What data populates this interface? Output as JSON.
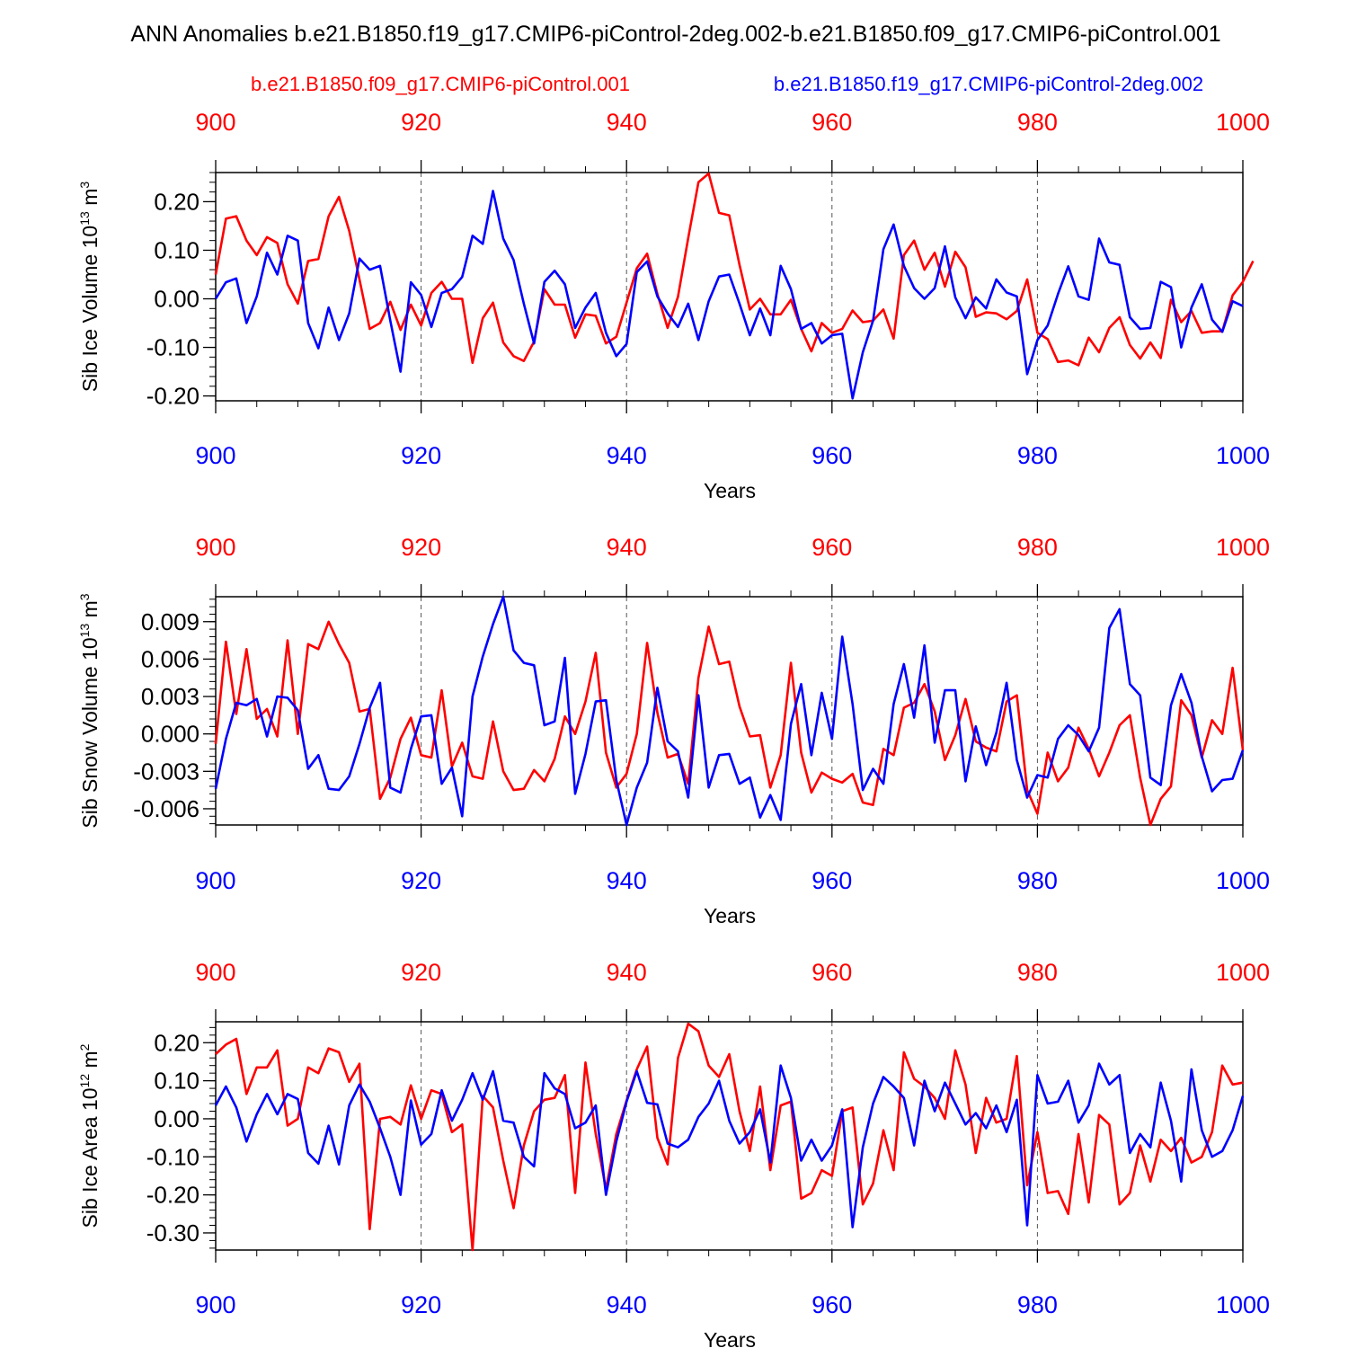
{
  "title": "ANN Anomalies b.e21.B1850.f19_g17.CMIP6-piControl-2deg.002-b.e21.B1850.f09_g17.CMIP6-piControl.001",
  "legend": {
    "red": "b.e21.B1850.f09_g17.CMIP6-piControl.001",
    "blue": "b.e21.B1850.f19_g17.CMIP6-piControl-2deg.002"
  },
  "colors": {
    "red": "#ff0000",
    "blue": "#0000ff",
    "axis": "#000000",
    "grid": "#555555"
  },
  "chart_data": [
    {
      "type": "line",
      "ylabel": "Sib Ice Volume",
      "units_base": "10",
      "units_exp": "13",
      "units_unit": "m",
      "units_unit_exp": "3",
      "xlabel": "Years",
      "xlim": [
        900,
        1000
      ],
      "ylim": [
        -0.21,
        0.26
      ],
      "xticks": [
        "900",
        "920",
        "940",
        "960",
        "980",
        "1000"
      ],
      "ytick_values": [
        0.2,
        0.1,
        0.0,
        -0.1,
        -0.2
      ],
      "ytick_labels": [
        "0.20",
        "0.10",
        "0.00",
        "-0.10",
        "-0.20"
      ],
      "series": [
        {
          "name": "b.e21.B1850.f09_g17.CMIP6-piControl.001",
          "color": "red",
          "values": [
            0.05,
            0.165,
            0.17,
            0.12,
            0.09,
            0.127,
            0.115,
            0.03,
            -0.01,
            0.078,
            0.082,
            0.17,
            0.21,
            0.14,
            0.04,
            -0.062,
            -0.05,
            -0.006,
            -0.064,
            -0.012,
            -0.055,
            0.012,
            0.035,
            0.0,
            0.0,
            -0.132,
            -0.04,
            -0.008,
            -0.09,
            -0.118,
            -0.128,
            -0.088,
            0.02,
            -0.012,
            -0.012,
            -0.08,
            -0.032,
            -0.035,
            -0.092,
            -0.078,
            -0.008,
            0.063,
            0.093,
            0.01,
            -0.06,
            0.004,
            0.125,
            0.24,
            0.258,
            0.177,
            0.172,
            0.07,
            -0.022,
            0.0,
            -0.032,
            -0.032,
            -0.002,
            -0.062,
            -0.108,
            -0.05,
            -0.07,
            -0.062,
            -0.024,
            -0.048,
            -0.045,
            -0.022,
            -0.082,
            0.09,
            0.12,
            0.06,
            0.095,
            0.025,
            0.097,
            0.065,
            -0.037,
            -0.028,
            -0.03,
            -0.042,
            -0.025,
            0.04,
            -0.07,
            -0.083,
            -0.13,
            -0.127,
            -0.137,
            -0.08,
            -0.11,
            -0.06,
            -0.038,
            -0.095,
            -0.123,
            -0.09,
            -0.122,
            -0.002,
            -0.048,
            -0.025,
            -0.07,
            -0.067,
            -0.067,
            0.007,
            0.035,
            0.078
          ]
        },
        {
          "name": "b.e21.B1850.f19_g17.CMIP6-piControl-2deg.002",
          "color": "blue",
          "values": [
            0.0,
            0.034,
            0.042,
            -0.05,
            0.005,
            0.095,
            0.05,
            0.13,
            0.12,
            -0.05,
            -0.102,
            -0.018,
            -0.085,
            -0.03,
            0.083,
            0.06,
            0.068,
            -0.045,
            -0.15,
            0.034,
            0.008,
            -0.058,
            0.012,
            0.02,
            0.045,
            0.13,
            0.113,
            0.222,
            0.124,
            0.08,
            -0.01,
            -0.092,
            0.035,
            0.058,
            0.03,
            -0.06,
            -0.018,
            0.012,
            -0.07,
            -0.118,
            -0.093,
            0.055,
            0.077,
            0.005,
            -0.03,
            -0.058,
            -0.01,
            -0.085,
            -0.005,
            0.046,
            0.05,
            -0.01,
            -0.075,
            -0.02,
            -0.075,
            0.068,
            0.02,
            -0.062,
            -0.05,
            -0.092,
            -0.075,
            -0.072,
            -0.205,
            -0.11,
            -0.045,
            0.102,
            0.153,
            0.068,
            0.022,
            0.0,
            0.022,
            0.108,
            0.003,
            -0.04,
            0.003,
            -0.02,
            0.04,
            0.013,
            0.005,
            -0.155,
            -0.085,
            -0.055,
            0.01,
            0.067,
            0.005,
            -0.002,
            0.124,
            0.075,
            0.07,
            -0.038,
            -0.062,
            -0.06,
            0.035,
            0.024,
            -0.1,
            -0.018,
            0.03,
            -0.043,
            -0.068,
            -0.005,
            -0.015
          ]
        }
      ]
    },
    {
      "type": "line",
      "ylabel": "Sib Snow Volume",
      "units_base": "10",
      "units_exp": "13",
      "units_unit": "m",
      "units_unit_exp": "3",
      "xlabel": "Years",
      "xlim": [
        900,
        1000
      ],
      "ylim": [
        -0.0073,
        0.011
      ],
      "xticks": [
        "900",
        "920",
        "940",
        "960",
        "980",
        "1000"
      ],
      "ytick_values": [
        0.009,
        0.006,
        0.003,
        0.0,
        -0.003,
        -0.006
      ],
      "ytick_labels": [
        "0.009",
        "0.006",
        "0.003",
        "0.000",
        "-0.003",
        "-0.006"
      ],
      "series": [
        {
          "name": "b.e21.B1850.f09_g17.CMIP6-piControl.001",
          "color": "red",
          "values": [
            -0.0008,
            0.0074,
            0.0016,
            0.0068,
            0.0012,
            0.002,
            -0.0002,
            0.0075,
            0.0,
            0.0072,
            0.0068,
            0.009,
            0.0072,
            0.0057,
            0.0018,
            0.002,
            -0.0052,
            -0.0035,
            -0.0004,
            0.0013,
            -0.0017,
            -0.0019,
            0.0035,
            -0.0026,
            -0.0007,
            -0.0034,
            -0.0036,
            0.001,
            -0.003,
            -0.0045,
            -0.0044,
            -0.0029,
            -0.0038,
            -0.002,
            0.0014,
            0.0,
            0.0026,
            0.0065,
            -0.0015,
            -0.0043,
            -0.0032,
            0.0,
            0.0073,
            0.0017,
            -0.0019,
            -0.0016,
            -0.004,
            0.0045,
            0.0086,
            0.0056,
            0.0058,
            0.0022,
            -0.0002,
            -0.0001,
            -0.0043,
            -0.0017,
            0.0057,
            -0.0015,
            -0.0047,
            -0.0031,
            -0.0036,
            -0.0039,
            -0.0032,
            -0.0055,
            -0.0057,
            -0.0012,
            -0.0017,
            0.0021,
            0.0025,
            0.004,
            0.0018,
            -0.0021,
            -0.0001,
            0.0028,
            -0.0006,
            -0.0011,
            -0.0014,
            0.0026,
            0.0031,
            -0.0045,
            -0.0064,
            -0.0015,
            -0.0038,
            -0.0027,
            0.0005,
            -0.0012,
            -0.0034,
            -0.0015,
            0.0007,
            0.0015,
            -0.0035,
            -0.0073,
            -0.0052,
            -0.0042,
            0.0027,
            0.0015,
            -0.0019,
            0.0011,
            0.0,
            0.0053,
            -0.0013
          ]
        },
        {
          "name": "b.e21.B1850.f19_g17.CMIP6-piControl-2deg.002",
          "color": "blue",
          "values": [
            -0.0044,
            -0.0004,
            0.0025,
            0.0023,
            0.0028,
            -0.0002,
            0.003,
            0.0029,
            0.0019,
            -0.0028,
            -0.0017,
            -0.0044,
            -0.0045,
            -0.0034,
            -0.0008,
            0.0021,
            0.0041,
            -0.0043,
            -0.0047,
            -0.0012,
            0.0014,
            0.0015,
            -0.004,
            -0.0027,
            -0.0066,
            0.003,
            0.0062,
            0.0088,
            0.011,
            0.0067,
            0.0057,
            0.0055,
            0.0007,
            0.001,
            0.0061,
            -0.0048,
            -0.0016,
            0.0026,
            0.0027,
            -0.0037,
            -0.0073,
            -0.0043,
            -0.0023,
            0.0037,
            -0.0006,
            -0.0014,
            -0.0051,
            0.0031,
            -0.0043,
            -0.0017,
            -0.0016,
            -0.004,
            -0.0035,
            -0.0067,
            -0.0049,
            -0.0069,
            0.0008,
            0.004,
            -0.0017,
            0.0033,
            -0.0004,
            0.0078,
            0.0024,
            -0.0045,
            -0.0028,
            -0.004,
            0.0024,
            0.0056,
            0.0013,
            0.0071,
            -0.0007,
            0.0035,
            0.0035,
            -0.0038,
            0.0006,
            -0.0025,
            0.0001,
            0.0041,
            -0.0021,
            -0.0051,
            -0.0033,
            -0.0035,
            -0.0004,
            0.0007,
            -0.0001,
            -0.0014,
            0.0005,
            0.0085,
            0.01,
            0.004,
            0.0031,
            -0.0035,
            -0.0041,
            0.0023,
            0.0048,
            0.0025,
            -0.0018,
            -0.0046,
            -0.0037,
            -0.0036,
            -0.0013
          ]
        }
      ]
    },
    {
      "type": "line",
      "ylabel": "Sib Ice Area",
      "units_base": "10",
      "units_exp": "12",
      "units_unit": "m",
      "units_unit_exp": "2",
      "xlabel": "Years",
      "xlim": [
        900,
        1000
      ],
      "ylim": [
        -0.345,
        0.255
      ],
      "xticks": [
        "900",
        "920",
        "940",
        "960",
        "980",
        "1000"
      ],
      "ytick_values": [
        0.2,
        0.1,
        0.0,
        -0.1,
        -0.2,
        -0.3
      ],
      "ytick_labels": [
        "0.20",
        "0.10",
        "0.00",
        "-0.10",
        "-0.20",
        "-0.30"
      ],
      "series": [
        {
          "name": "b.e21.B1850.f09_g17.CMIP6-piControl.001",
          "color": "red",
          "values": [
            0.17,
            0.195,
            0.21,
            0.065,
            0.135,
            0.135,
            0.18,
            -0.018,
            0.0,
            0.135,
            0.12,
            0.185,
            0.175,
            0.097,
            0.145,
            -0.29,
            0.0,
            0.005,
            -0.015,
            0.088,
            0.0,
            0.075,
            0.065,
            -0.035,
            -0.015,
            -0.345,
            0.06,
            0.03,
            -0.11,
            -0.235,
            -0.07,
            0.02,
            0.05,
            0.055,
            0.115,
            -0.195,
            0.148,
            -0.04,
            -0.185,
            -0.04,
            0.048,
            0.13,
            0.19,
            -0.05,
            -0.12,
            0.16,
            0.25,
            0.23,
            0.14,
            0.11,
            0.17,
            0.02,
            -0.085,
            0.085,
            -0.135,
            0.035,
            0.045,
            -0.21,
            -0.195,
            -0.135,
            -0.15,
            0.02,
            0.03,
            -0.225,
            -0.17,
            -0.03,
            -0.135,
            0.175,
            0.105,
            0.085,
            0.055,
            0.0,
            0.18,
            0.09,
            -0.09,
            0.055,
            -0.01,
            0.0,
            0.165,
            -0.175,
            -0.035,
            -0.195,
            -0.19,
            -0.25,
            -0.04,
            -0.22,
            0.01,
            -0.015,
            -0.225,
            -0.195,
            -0.07,
            -0.165,
            -0.055,
            -0.085,
            -0.05,
            -0.115,
            -0.1,
            -0.035,
            0.14,
            0.09,
            0.095
          ]
        },
        {
          "name": "b.e21.B1850.f19_g17.CMIP6-piControl-2deg.002",
          "color": "blue",
          "values": [
            0.035,
            0.085,
            0.03,
            -0.06,
            0.012,
            0.065,
            0.012,
            0.065,
            0.052,
            -0.09,
            -0.118,
            -0.018,
            -0.12,
            0.035,
            0.09,
            0.045,
            -0.025,
            -0.1,
            -0.2,
            0.048,
            -0.068,
            -0.04,
            0.075,
            -0.005,
            0.05,
            0.12,
            0.05,
            0.125,
            -0.005,
            -0.01,
            -0.1,
            -0.125,
            0.12,
            0.08,
            0.065,
            -0.025,
            -0.01,
            0.035,
            -0.2,
            -0.06,
            0.045,
            0.125,
            0.042,
            0.038,
            -0.065,
            -0.075,
            -0.055,
            0.005,
            0.04,
            0.1,
            -0.005,
            -0.065,
            -0.035,
            0.025,
            -0.115,
            0.14,
            0.055,
            -0.11,
            -0.055,
            -0.11,
            -0.07,
            0.025,
            -0.285,
            -0.075,
            0.04,
            0.11,
            0.085,
            0.055,
            -0.07,
            0.1,
            0.02,
            0.095,
            0.04,
            -0.015,
            0.015,
            -0.025,
            0.035,
            -0.035,
            0.05,
            -0.28,
            0.115,
            0.04,
            0.045,
            0.1,
            -0.01,
            0.035,
            0.145,
            0.09,
            0.115,
            -0.09,
            -0.04,
            -0.075,
            0.095,
            -0.005,
            -0.165,
            0.13,
            -0.03,
            -0.1,
            -0.085,
            -0.03,
            0.06
          ]
        }
      ]
    }
  ]
}
